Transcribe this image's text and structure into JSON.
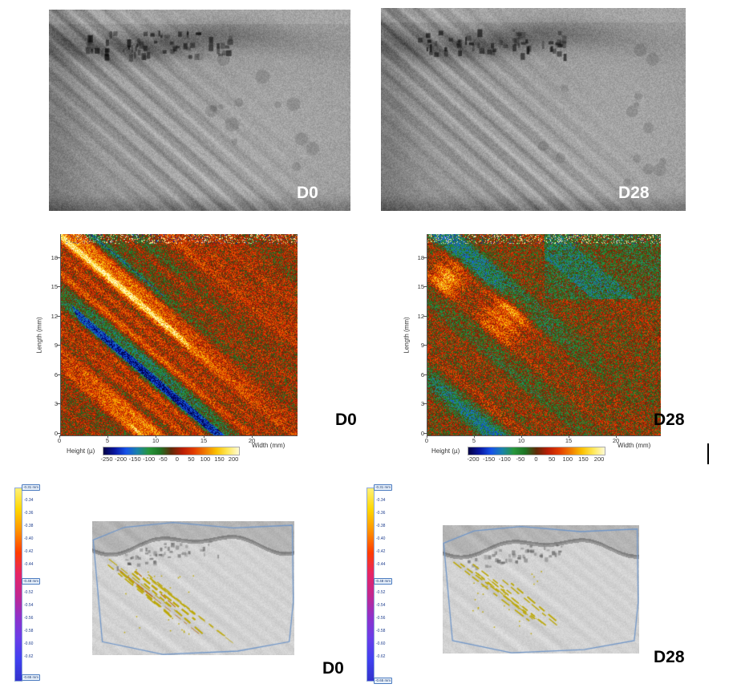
{
  "panels": {
    "photo_d0": {
      "label": "D0"
    },
    "photo_d28": {
      "label": "D28"
    },
    "heatmap_d0": {
      "label": "D0",
      "xlabel": "Width  (mm)",
      "ylabel": "Length  (mm)",
      "colorbar_label": "Height  (µ)",
      "x_ticks": [
        "0",
        "5",
        "10",
        "15",
        "20"
      ],
      "y_ticks": [
        "0",
        "3",
        "6",
        "9",
        "12",
        "15",
        "18"
      ],
      "colorbar_ticks": [
        "-250",
        "-200",
        "-150",
        "-100",
        "-50",
        "0",
        "50",
        "100",
        "150",
        "200"
      ]
    },
    "heatmap_d28": {
      "label": "D28",
      "xlabel": "Width  (mm)",
      "ylabel": "Length  (mm)",
      "colorbar_label": "Height  (µ)",
      "x_ticks": [
        "0",
        "5",
        "10",
        "15",
        "20"
      ],
      "y_ticks": [
        "0",
        "3",
        "6",
        "9",
        "12",
        "15",
        "18"
      ],
      "colorbar_ticks": [
        "-200",
        "-150",
        "-100",
        "-50",
        "0",
        "50",
        "100",
        "150",
        "200"
      ]
    },
    "render_d0": {
      "label": "D0",
      "scale_top": "-0.31 mm",
      "scale_mid": "-0.48 mm",
      "scale_bottom": "-0.65 mm",
      "upper_ticks": [
        "-0.34",
        "-0.36",
        "-0.38",
        "-0.40",
        "-0.42",
        "-0.44"
      ],
      "lower_ticks": [
        "-0.52",
        "-0.54",
        "-0.56",
        "-0.58",
        "-0.60",
        "-0.62"
      ]
    },
    "render_d28": {
      "label": "D28",
      "scale_top": "-0.31 mm",
      "scale_mid": "-0.48 mm",
      "scale_bottom": "-0.65 mm",
      "upper_ticks": [
        "-0.34",
        "-0.36",
        "-0.38",
        "-0.40",
        "-0.42",
        "-0.44"
      ],
      "lower_ticks": [
        "-0.52",
        "-0.54",
        "-0.56",
        "-0.58",
        "-0.60",
        "-0.62"
      ]
    }
  },
  "colors": {
    "photo_label": "#ffffff",
    "map_label": "#000000",
    "heatbar_stops": [
      "#020246",
      "#0816a0",
      "#1652e8",
      "#1a82aa",
      "#28963c",
      "#1e7323",
      "#5f2a08",
      "#b91e05",
      "#e23c00",
      "#f07a00",
      "#fac000",
      "#ffe85a",
      "#fffad4"
    ],
    "render_scale_stops": [
      "#fff176",
      "#ffd600",
      "#ff9100",
      "#ff3d00",
      "#e62565",
      "#c2278f",
      "#9031c9",
      "#6a3de8",
      "#4040f0",
      "#3333cc"
    ],
    "mesh_border": "#7096c8",
    "wrinkle_yellow": "#bca808",
    "wrinkle_orange": "#ba7012"
  },
  "chart_data": [
    {
      "type": "heatmap",
      "title": "D0",
      "xlabel": "Width (mm)",
      "ylabel": "Length (mm)",
      "x_range": [
        0,
        24
      ],
      "y_range": [
        0,
        20
      ],
      "x_tick_values": [
        0,
        5,
        10,
        15,
        20
      ],
      "y_tick_values": [
        0,
        3,
        6,
        9,
        12,
        15,
        18
      ],
      "colorbar": {
        "label": "Height (µ)",
        "tick_values": [
          -250,
          -200,
          -150,
          -100,
          -50,
          0,
          50,
          100,
          150,
          200
        ]
      },
      "legend_position": "bottom"
    },
    {
      "type": "heatmap",
      "title": "D28",
      "xlabel": "Width (mm)",
      "ylabel": "Length (mm)",
      "x_range": [
        0,
        24
      ],
      "y_range": [
        0,
        20
      ],
      "x_tick_values": [
        0,
        5,
        10,
        15,
        20
      ],
      "y_tick_values": [
        0,
        3,
        6,
        9,
        12,
        15,
        18
      ],
      "colorbar": {
        "label": "Height (µ)",
        "tick_values": [
          -200,
          -150,
          -100,
          -50,
          0,
          50,
          100,
          150,
          200
        ]
      },
      "legend_position": "bottom"
    }
  ]
}
